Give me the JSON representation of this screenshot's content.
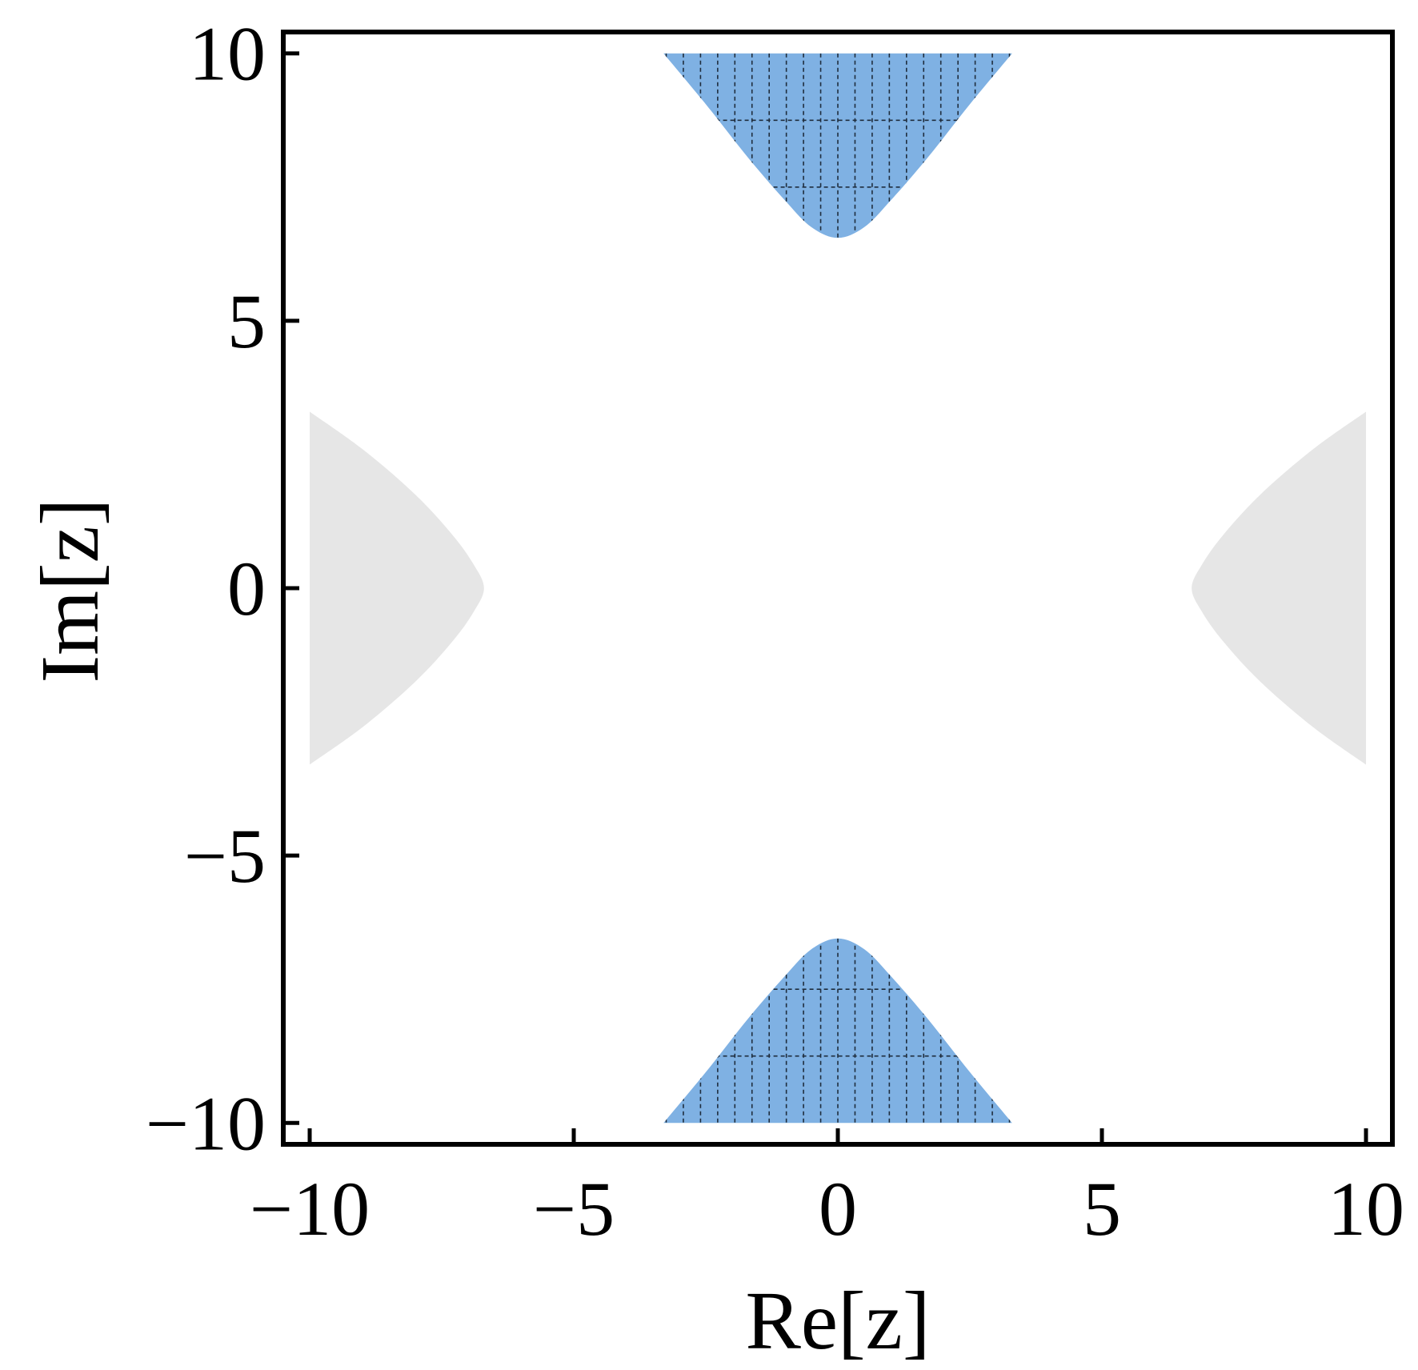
{
  "chart_data": {
    "type": "area",
    "xlabel": "Re[z]",
    "ylabel": "Im[z]",
    "xlim": [
      -10.5,
      10.5
    ],
    "ylim": [
      -10.4,
      10.4
    ],
    "xticks": [
      -10,
      -5,
      0,
      5,
      10
    ],
    "yticks": [
      -10,
      -5,
      0,
      5,
      10
    ],
    "xtick_labels": [
      "−10",
      "−5",
      "0",
      "5",
      "10"
    ],
    "ytick_labels": [
      "−10",
      "−5",
      "0",
      "5",
      "10"
    ],
    "frame": "box",
    "ticks_direction": "in",
    "regions": [
      {
        "id": "upper",
        "color": "#7fb1e3",
        "hatch": "dashed grid",
        "x": [
          -3.3,
          -2.5,
          -1.7,
          -1.0,
          -0.5,
          0,
          0.5,
          1.0,
          1.7,
          2.5,
          3.3
        ],
        "y": [
          10,
          9.05,
          8.05,
          7.25,
          6.75,
          6.55,
          6.75,
          7.25,
          8.05,
          9.05,
          10
        ],
        "hatch_y": [
          8.75,
          7.5
        ]
      },
      {
        "id": "lower",
        "color": "#7fb1e3",
        "hatch": "dashed grid",
        "x": [
          -3.3,
          -2.5,
          -1.7,
          -1.0,
          -0.5,
          0,
          0.5,
          1.0,
          1.7,
          2.5,
          3.3
        ],
        "y": [
          -10,
          -9.05,
          -8.05,
          -7.25,
          -6.75,
          -6.55,
          -6.75,
          -7.25,
          -8.05,
          -9.05,
          -10
        ],
        "hatch_y": [
          -8.75,
          -7.5
        ]
      },
      {
        "id": "left",
        "color": "#e6e6e6",
        "x": [
          -10,
          -9.0,
          -8.0,
          -7.3,
          -6.9,
          -6.7,
          -6.9,
          -7.3,
          -8.0,
          -9.0,
          -10
        ],
        "y": [
          3.3,
          2.6,
          1.75,
          1.0,
          0.45,
          0,
          -0.45,
          -1.0,
          -1.75,
          -2.6,
          -3.3
        ]
      },
      {
        "id": "right",
        "color": "#e6e6e6",
        "x": [
          10,
          9.0,
          8.0,
          7.3,
          6.9,
          6.7,
          6.9,
          7.3,
          8.0,
          9.0,
          10
        ],
        "y": [
          3.3,
          2.6,
          1.75,
          1.0,
          0.45,
          0,
          -0.45,
          -1.0,
          -1.75,
          -2.6,
          -3.3
        ]
      }
    ]
  }
}
